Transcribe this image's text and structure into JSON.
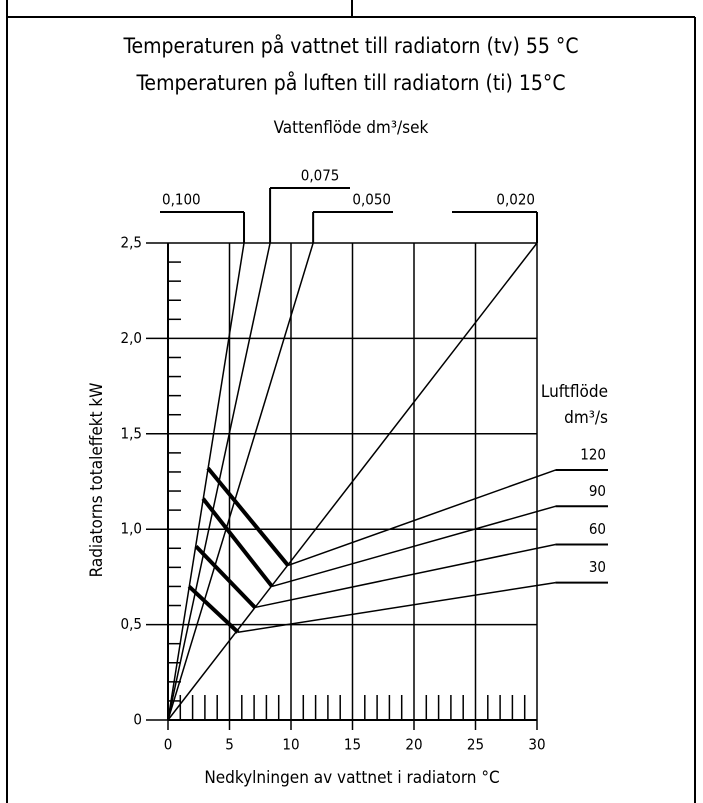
{
  "chart_data": {
    "type": "line",
    "title": "Temperaturen på vattnet till radiatorn (tv) 55 °C",
    "subtitle": "Temperaturen på luften till radiatorn (ti) 15°C",
    "x_label": "Nedkylningen av vattnet i radiatorn °C",
    "y_label": "Radiatorns totaleffekt kW",
    "xlim": [
      0,
      30
    ],
    "ylim": [
      0,
      2.5
    ],
    "xticks": [
      0,
      5,
      10,
      15,
      20,
      25,
      30
    ],
    "yticks": [
      0,
      {
        "value": 0.5,
        "label": "0,5"
      },
      {
        "value": 1.0,
        "label": "1,0"
      },
      {
        "value": 1.5,
        "label": "1,5"
      },
      {
        "value": 2.0,
        "label": "2,0"
      },
      {
        "value": 2.5,
        "label": "2,5"
      }
    ],
    "grid": true,
    "water_flow": {
      "title": "Vattenflöde dm³/sek",
      "series": [
        {
          "name": "0,100",
          "color": "#000000",
          "x": [
            0,
            6.18
          ],
          "values": [
            0,
            2.5
          ]
        },
        {
          "name": "0,075",
          "color": "#000000",
          "x": [
            0,
            8.3
          ],
          "values": [
            0,
            2.5
          ]
        },
        {
          "name": "0,050",
          "color": "#000000",
          "x": [
            0,
            11.8
          ],
          "values": [
            0,
            2.5
          ]
        },
        {
          "name": "0,020",
          "color": "#000000",
          "x": [
            0,
            30
          ],
          "values": [
            0,
            2.5
          ]
        }
      ]
    },
    "air_flow": {
      "title": [
        "Luftflöde",
        "dm³/s"
      ],
      "series": [
        {
          "name": "120",
          "color": "#000000",
          "x": [
            3.25,
            9.76,
            31.5
          ],
          "values": [
            1.32,
            0.81,
            1.31
          ]
        },
        {
          "name": "90",
          "color": "#000000",
          "x": [
            2.85,
            8.46,
            31.5
          ],
          "values": [
            1.16,
            0.7,
            1.12
          ]
        },
        {
          "name": "60",
          "color": "#000000",
          "x": [
            2.28,
            7.07,
            31.5
          ],
          "values": [
            0.91,
            0.59,
            0.92
          ]
        },
        {
          "name": "30",
          "color": "#000000",
          "x": [
            1.71,
            5.69,
            31.5
          ],
          "values": [
            0.7,
            0.46,
            0.72
          ]
        }
      ]
    }
  }
}
